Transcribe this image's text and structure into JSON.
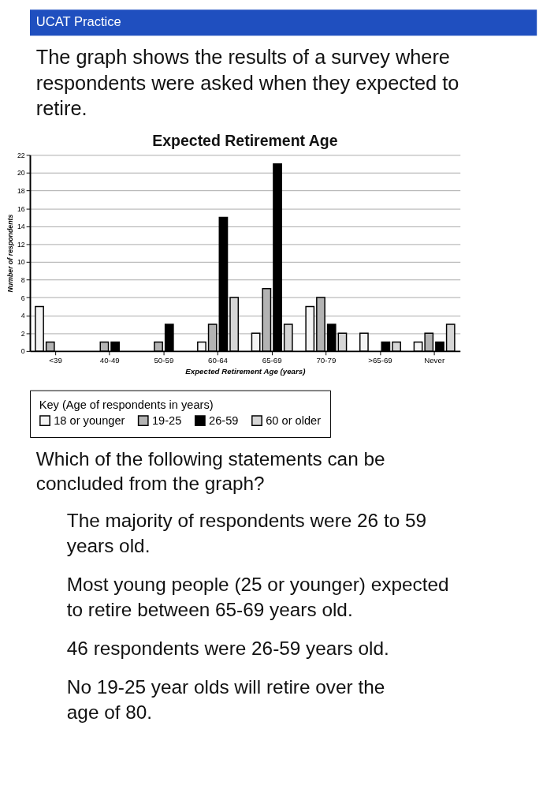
{
  "chart_data": {
    "type": "bar",
    "title": "Expected Retirement Age",
    "xlabel": "Expected Retirement Age (years)",
    "ylabel": "Number of respondents",
    "legend_title": "Key (Age of respondents in years)",
    "categories": [
      "<39",
      "40-49",
      "50-59",
      "60-64",
      "65-69",
      "70-79",
      ">65-69",
      "Never"
    ],
    "series": [
      {
        "name": "18 or younger",
        "color": "#f4f4f4",
        "values": [
          5,
          0,
          0,
          1,
          2,
          5,
          2,
          1
        ]
      },
      {
        "name": "19-25",
        "color": "#b3b3b3",
        "values": [
          1,
          1,
          1,
          3,
          7,
          6,
          0,
          2
        ]
      },
      {
        "name": "26-59",
        "color": "#000000",
        "values": [
          0,
          1,
          3,
          15,
          21,
          3,
          1,
          1
        ]
      },
      {
        "name": "60 or older",
        "color": "#d6d6d6",
        "values": [
          0,
          0,
          0,
          6,
          3,
          2,
          1,
          3
        ]
      }
    ],
    "ylim": [
      0,
      22
    ],
    "yticks": [
      0,
      2,
      4,
      6,
      8,
      10,
      12,
      14,
      16,
      18,
      20,
      22
    ],
    "grid": "y",
    "legend": "bottom",
    "annotations": [
      "UCAT Practice",
      "The graph shows the results of a survey where respondents were asked when they expected to retire.",
      "Which of the following statements can be concluded from the graph?",
      "The majority of respondents were 26 to 59 years old.",
      "Most young people (25 or younger) expected to retire between 65-69 years old.",
      "46 respondents were 26-59 years old.",
      "No 19-25 year olds will retire over the age of 80."
    ]
  }
}
